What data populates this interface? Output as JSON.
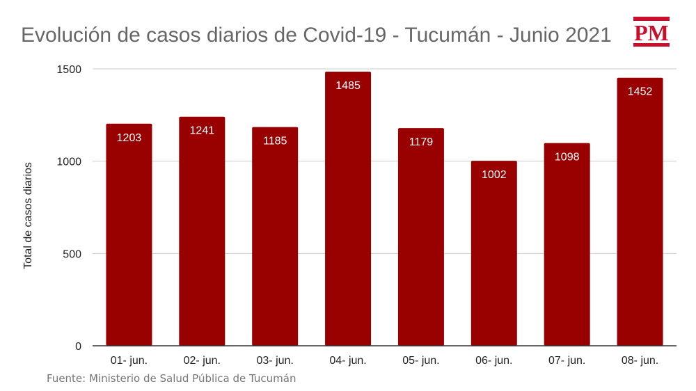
{
  "colors": {
    "bar": "#990000",
    "grid": "#cccccc",
    "axis": "#333333",
    "title": "#666666",
    "label_on_bar": "#ffffff",
    "logo": "#c8102e"
  },
  "logo": {
    "text": "PM"
  },
  "source": "Fuente: Ministerio de Salud Pública de Tucumán",
  "chart_data": {
    "type": "bar",
    "title": "Evolución de casos diarios de Covid-19 - Tucumán - Junio 2021",
    "xlabel": "",
    "ylabel": "Total de casos diarios",
    "categories": [
      "01- jun.",
      "02- jun.",
      "03- jun.",
      "04- jun.",
      "05- jun.",
      "06- jun.",
      "07- jun.",
      "08- jun."
    ],
    "values": [
      1203,
      1241,
      1185,
      1485,
      1179,
      1002,
      1098,
      1452
    ],
    "ylim": [
      0,
      1500
    ],
    "yticks": [
      0,
      500,
      1000,
      1500
    ],
    "grid": true,
    "legend": "none",
    "data_labels": true
  }
}
